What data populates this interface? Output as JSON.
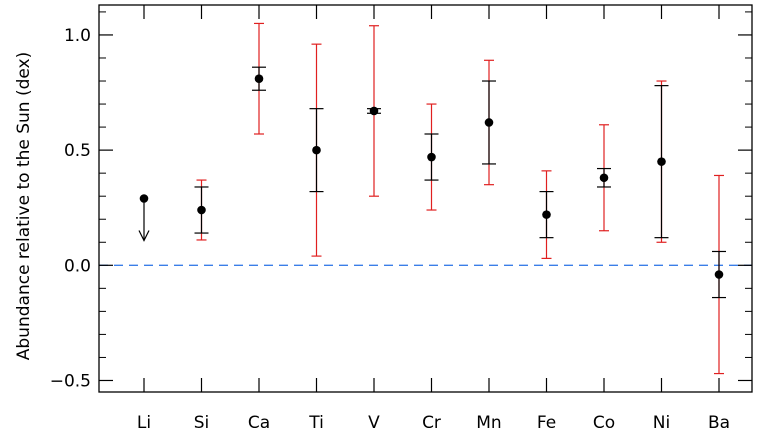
{
  "chart_data": {
    "type": "scatter",
    "title": "",
    "xlabel": "",
    "ylabel": "Abundance relative to the Sun (dex)",
    "ylim": [
      -0.55,
      1.13
    ],
    "yticks": [
      -0.5,
      0.0,
      0.5,
      1.0
    ],
    "ytick_labels": [
      "−0.5",
      "0.0",
      "0.5",
      "1.0"
    ],
    "yminor_step": 0.1,
    "grid": false,
    "legend": "none",
    "categories": [
      "Li",
      "Si",
      "Ca",
      "Ti",
      "V",
      "Cr",
      "Mn",
      "Fe",
      "Co",
      "Ni",
      "Ba"
    ],
    "values": [
      0.29,
      0.24,
      0.81,
      0.5,
      0.67,
      0.47,
      0.62,
      0.22,
      0.38,
      0.45,
      -0.04
    ],
    "upper_limit": [
      true,
      false,
      false,
      false,
      false,
      false,
      false,
      false,
      false,
      false,
      false
    ],
    "error_black": [
      null,
      [
        0.14,
        0.34
      ],
      [
        0.76,
        0.86
      ],
      [
        0.32,
        0.68
      ],
      [
        0.66,
        0.68
      ],
      [
        0.37,
        0.57
      ],
      [
        0.44,
        0.8
      ],
      [
        0.12,
        0.32
      ],
      [
        0.34,
        0.42
      ],
      [
        0.12,
        0.78
      ],
      [
        -0.14,
        0.06
      ]
    ],
    "error_red": [
      null,
      [
        0.11,
        0.37
      ],
      [
        0.57,
        1.05
      ],
      [
        0.04,
        0.96
      ],
      [
        0.3,
        1.04
      ],
      [
        0.24,
        0.7
      ],
      [
        0.35,
        0.89
      ],
      [
        0.03,
        0.41
      ],
      [
        0.15,
        0.61
      ],
      [
        0.1,
        0.8
      ],
      [
        -0.47,
        0.39
      ]
    ],
    "reference_line": {
      "y": 0.0,
      "style": "dashed"
    },
    "colors": {
      "points": "#000000",
      "error_black": "#000000",
      "error_red": "#e02020",
      "reference_line": "#3a7ee8"
    }
  }
}
